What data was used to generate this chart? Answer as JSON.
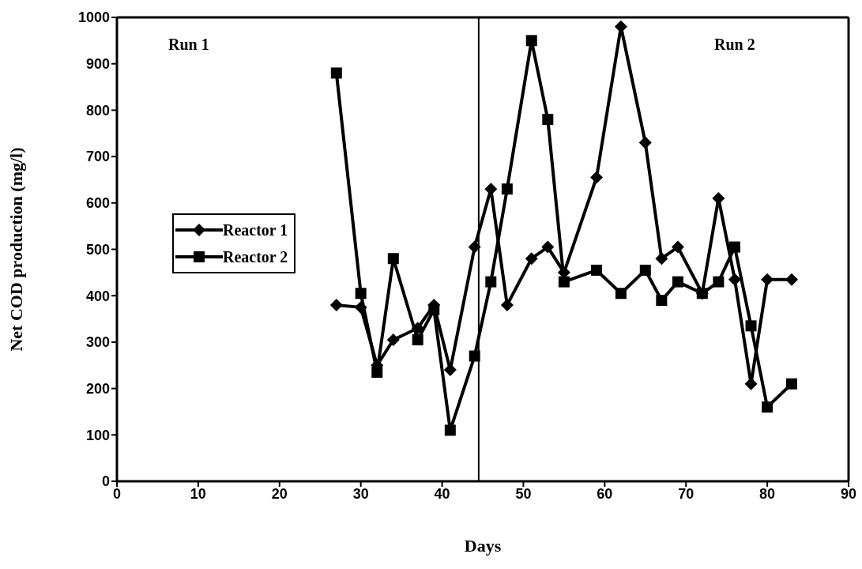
{
  "chart_data": {
    "type": "line",
    "xlabel": "Days",
    "ylabel": "Net COD production (mg/l)",
    "x": [
      27,
      30,
      32,
      34,
      37,
      39,
      41,
      44,
      46,
      48,
      51,
      53,
      55,
      59,
      62,
      65,
      67,
      69,
      72,
      74,
      76,
      78,
      80,
      83
    ],
    "series": [
      {
        "name": "Reactor 1",
        "color": "#000000",
        "marker": "diamond",
        "values": [
          380,
          375,
          250,
          305,
          330,
          380,
          240,
          505,
          630,
          380,
          480,
          505,
          450,
          655,
          980,
          730,
          480,
          505,
          405,
          610,
          435,
          210,
          435,
          435
        ]
      },
      {
        "name": "Reactor 2",
        "color": "#000000",
        "marker": "square",
        "values": [
          880,
          405,
          235,
          480,
          305,
          370,
          110,
          270,
          430,
          630,
          950,
          780,
          430,
          455,
          405,
          455,
          390,
          430,
          405,
          430,
          505,
          335,
          160,
          210
        ]
      }
    ],
    "xlim": [
      0,
      90
    ],
    "xticks": [
      0,
      10,
      20,
      30,
      40,
      50,
      60,
      70,
      80,
      90
    ],
    "ylim": [
      0,
      1000
    ],
    "yticks": [
      0,
      100,
      200,
      300,
      400,
      500,
      600,
      700,
      800,
      900,
      1000
    ],
    "ref_lines": [
      {
        "axis": "x",
        "value": 44.5,
        "color": "#000000"
      }
    ],
    "annotations": [
      "Run 1",
      "Run 2"
    ],
    "legend": "left",
    "line_style": "solid"
  }
}
